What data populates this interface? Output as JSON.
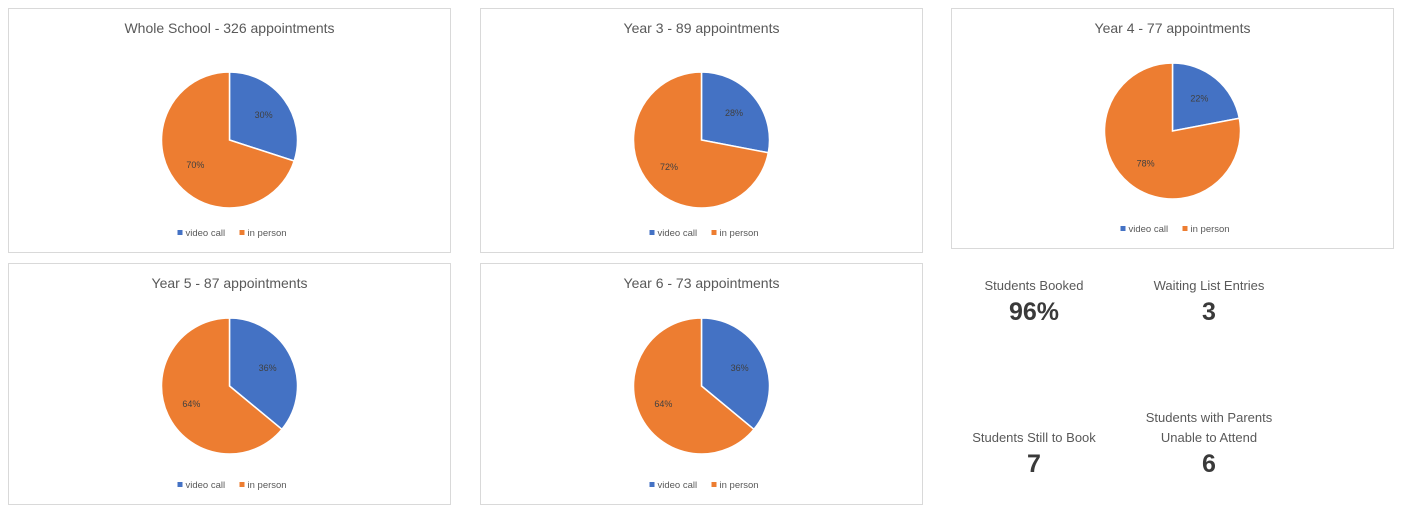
{
  "colors": {
    "video_call": "#4472C4",
    "in_person": "#ED7D31"
  },
  "chart_data": [
    {
      "type": "pie",
      "title": "Whole School - 326 appointments",
      "categories": [
        "video call",
        "in person"
      ],
      "values": [
        30,
        70
      ],
      "labels": [
        "30%",
        "70%"
      ],
      "legend": "bottom"
    },
    {
      "type": "pie",
      "title": "Year 3 - 89 appointments",
      "categories": [
        "video call",
        "in person"
      ],
      "values": [
        28,
        72
      ],
      "labels": [
        "28%",
        "72%"
      ],
      "legend": "bottom"
    },
    {
      "type": "pie",
      "title": "Year 4 - 77 appointments",
      "categories": [
        "video call",
        "in person"
      ],
      "values": [
        22,
        78
      ],
      "labels": [
        "22%",
        "78%"
      ],
      "legend": "bottom"
    },
    {
      "type": "pie",
      "title": "Year 5 - 87 appointments",
      "categories": [
        "video call",
        "in person"
      ],
      "values": [
        36,
        64
      ],
      "labels": [
        "36%",
        "64%"
      ],
      "legend": "bottom"
    },
    {
      "type": "pie",
      "title": "Year 6 - 73 appointments",
      "categories": [
        "video call",
        "in person"
      ],
      "values": [
        36,
        64
      ],
      "labels": [
        "36%",
        "64%"
      ],
      "legend": "bottom"
    }
  ],
  "stats": {
    "students_booked": {
      "label": "Students Booked",
      "value": "96%"
    },
    "waiting_list": {
      "label": "Waiting List Entries",
      "value": "3"
    },
    "still_to_book": {
      "label": "Students Still to Book",
      "value": "7"
    },
    "unable_to_attend": {
      "label_line1": "Students with Parents",
      "label_line2": "Unable to Attend",
      "value": "6"
    }
  }
}
